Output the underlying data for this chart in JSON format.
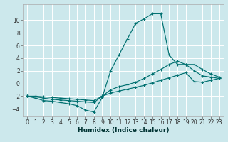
{
  "xlabel": "Humidex (Indice chaleur)",
  "bg_color": "#cce8ec",
  "line_color": "#007070",
  "grid_color": "#b8d8dc",
  "xlim": [
    -0.5,
    23.5
  ],
  "ylim": [
    -5.2,
    12.5
  ],
  "xticks": [
    0,
    1,
    2,
    3,
    4,
    5,
    6,
    7,
    8,
    9,
    10,
    11,
    12,
    13,
    14,
    15,
    16,
    17,
    18,
    19,
    20,
    21,
    22,
    23
  ],
  "yticks": [
    -4,
    -2,
    0,
    2,
    4,
    6,
    8,
    10
  ],
  "series": [
    {
      "x": [
        0,
        1,
        2,
        3,
        4,
        5,
        6,
        7,
        8,
        9,
        10,
        11,
        12,
        13,
        14,
        15,
        16,
        17,
        18,
        19,
        20,
        21,
        22,
        23
      ],
      "y": [
        -2.0,
        -2.3,
        -2.7,
        -2.8,
        -3.0,
        -3.2,
        -3.5,
        -4.2,
        -4.5,
        -2.2,
        2.0,
        4.5,
        7.0,
        9.5,
        10.2,
        11.0,
        11.0,
        4.5,
        3.0,
        3.0,
        2.0,
        1.2,
        1.0,
        0.8
      ]
    },
    {
      "x": [
        0,
        1,
        2,
        3,
        4,
        5,
        6,
        7,
        8,
        9,
        10,
        11,
        12,
        13,
        14,
        15,
        16,
        17,
        18,
        19,
        20,
        21,
        22,
        23
      ],
      "y": [
        -2.0,
        -2.1,
        -2.3,
        -2.5,
        -2.6,
        -2.7,
        -2.8,
        -2.9,
        -3.0,
        -2.0,
        -1.0,
        -0.5,
        -0.2,
        0.2,
        0.8,
        1.5,
        2.2,
        3.0,
        3.5,
        3.0,
        3.0,
        2.2,
        1.5,
        1.0
      ]
    },
    {
      "x": [
        0,
        1,
        2,
        3,
        4,
        5,
        6,
        7,
        8,
        9,
        10,
        11,
        12,
        13,
        14,
        15,
        16,
        17,
        18,
        19,
        20,
        21,
        22,
        23
      ],
      "y": [
        -2.0,
        -2.0,
        -2.1,
        -2.2,
        -2.3,
        -2.4,
        -2.5,
        -2.6,
        -2.7,
        -2.0,
        -1.5,
        -1.2,
        -0.9,
        -0.6,
        -0.3,
        0.1,
        0.5,
        0.9,
        1.3,
        1.7,
        0.3,
        0.2,
        0.5,
        0.8
      ]
    }
  ]
}
